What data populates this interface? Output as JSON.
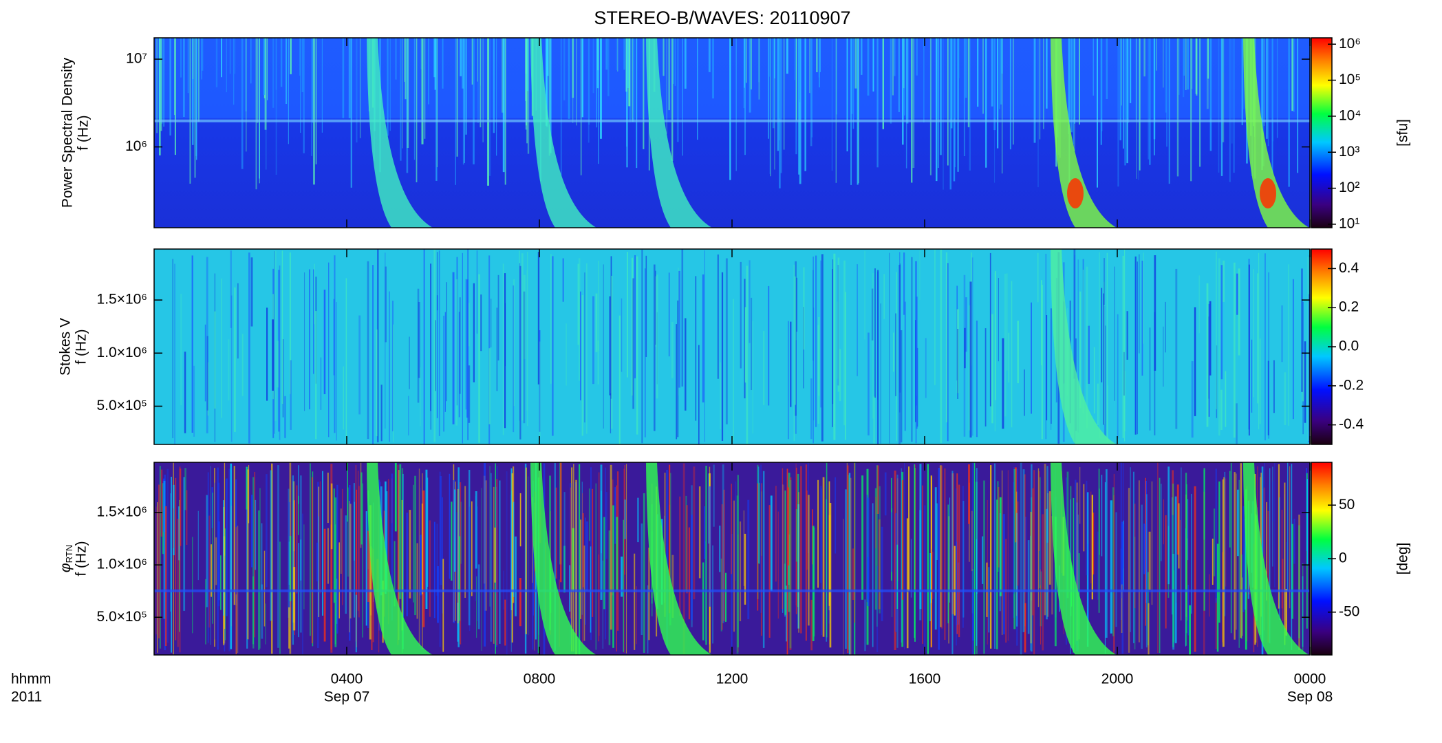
{
  "title": "STEREO-B/WAVES: 20110907",
  "chart_data": [
    {
      "type": "spectrogram",
      "ylabel": [
        "Power Spectral Density",
        "f (Hz)"
      ],
      "ylog": true,
      "ylim": [
        120000,
        17500000
      ],
      "yticks": [
        {
          "value": 1000000,
          "label": "10⁶"
        },
        {
          "value": 10000000,
          "label": "10⁷"
        }
      ],
      "colorbar": {
        "label": "[sfu]",
        "log": true,
        "lim": [
          8,
          1500000
        ],
        "ticks": [
          {
            "value": 10,
            "label": "10¹"
          },
          {
            "value": 100,
            "label": "10²"
          },
          {
            "value": 1000,
            "label": "10³"
          },
          {
            "value": 10000,
            "label": "10⁴"
          },
          {
            "value": 100000,
            "label": "10⁵"
          },
          {
            "value": 1000000,
            "label": "10⁶"
          }
        ]
      }
    },
    {
      "type": "spectrogram",
      "ylabel": [
        "Stokes V",
        "f (Hz)"
      ],
      "ylog": false,
      "ylim": [
        140000,
        1980000
      ],
      "yticks": [
        {
          "value": 500000,
          "label": "5.0×10⁵"
        },
        {
          "value": 1000000,
          "label": "1.0×10⁶"
        },
        {
          "value": 1500000,
          "label": "1.5×10⁶"
        }
      ],
      "colorbar": {
        "log": false,
        "lim": [
          -0.5,
          0.5
        ],
        "ticks": [
          -0.4,
          -0.2,
          {
            "value": 0,
            "label": "0.0"
          },
          0.2,
          0.4
        ]
      }
    },
    {
      "type": "spectrogram",
      "ylabel": [
        {
          "symbol": "φ",
          "subscript": "RTN"
        },
        "f (Hz)"
      ],
      "ylog": false,
      "ylim": [
        140000,
        1980000
      ],
      "yticks": [
        {
          "value": 500000,
          "label": "5.0×10⁵"
        },
        {
          "value": 1000000,
          "label": "1.0×10⁶"
        },
        {
          "value": 1500000,
          "label": "1.5×10⁶"
        }
      ],
      "colorbar": {
        "label": "[deg]",
        "log": false,
        "lim": [
          -90,
          90
        ],
        "ticks": [
          -50,
          0,
          50
        ]
      }
    }
  ],
  "x_axis": {
    "label": [
      "hhmm",
      "2011"
    ],
    "xlim": [
      0,
      24
    ],
    "xticks": [
      {
        "value": 4,
        "label": "0400"
      },
      {
        "value": 8,
        "label": "0800"
      },
      {
        "value": 12,
        "label": "1200"
      },
      {
        "value": 16,
        "label": "1600"
      },
      {
        "value": 20,
        "label": "2000"
      },
      {
        "value": 24,
        "label": "0000"
      }
    ],
    "date_labels": [
      {
        "value": 4,
        "label": "Sep 07"
      },
      {
        "value": 24,
        "label": "Sep 08"
      }
    ]
  }
}
